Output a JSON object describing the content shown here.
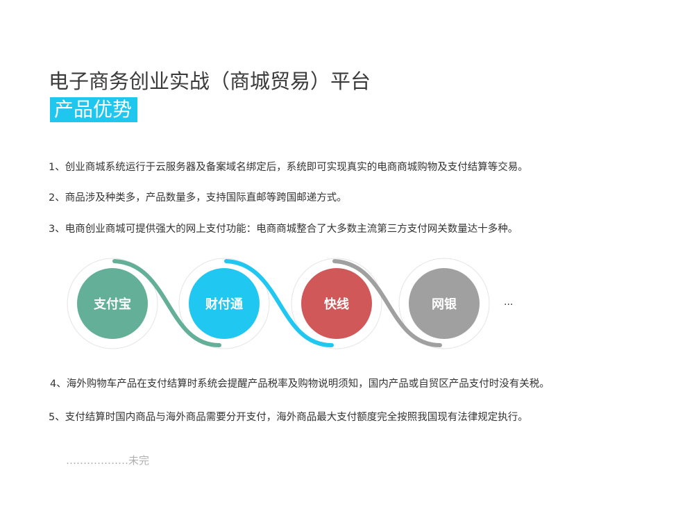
{
  "title": "电子商务创业实战（商城贸易）平台",
  "section_badge": "产品优势",
  "items": [
    "1、创业商城系统运行于云服务器及备案域名绑定后，系统即可实现真实的电商商城购物及支付结算等交易。",
    "2、商品涉及种类多，产品数量多，支持国际直邮等跨国邮递方式。",
    "3、电商创业商城可提供强大的网上支付功能：电商商城整合了大多数主流第三方支付网关数量达十多种。",
    "4、海外购物车产品在支付结算时系统会提醒产品税率及购物说明须知，国内产品或自贸区产品支付时没有关税。",
    "5、支付结算时国内商品与海外商品需要分开支付，海外商品最大支付额度完全按照我国现有法律规定执行。"
  ],
  "payment_methods": [
    {
      "label": "支付宝",
      "color": "#63af97"
    },
    {
      "label": "财付通",
      "color": "#20c7f0"
    },
    {
      "label": "快线",
      "color": "#d05858"
    },
    {
      "label": "网银",
      "color": "#a0a0a0"
    }
  ],
  "more": "...",
  "unfinished": "………………未完"
}
